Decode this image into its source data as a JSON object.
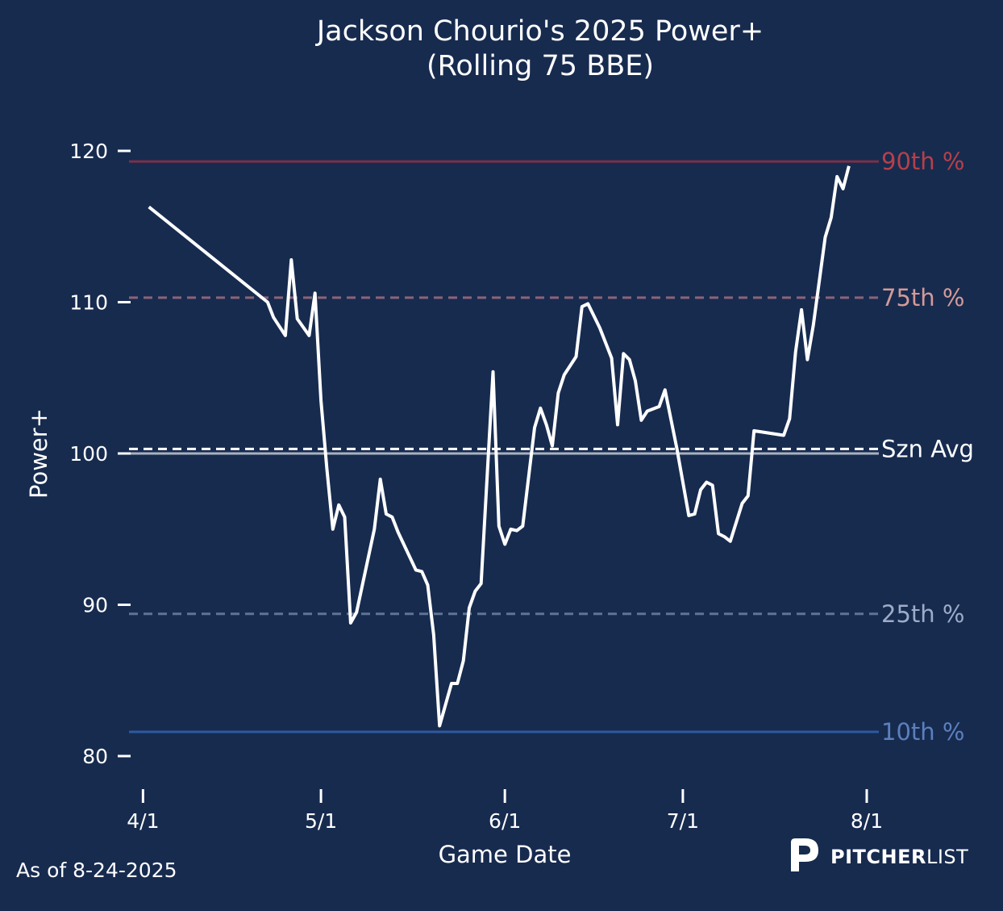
{
  "chart_data": {
    "type": "line",
    "title": "Jackson Chourio's 2025 Power+",
    "subtitle": "(Rolling 75 BBE)",
    "xlabel": "Game Date",
    "ylabel": "Power+",
    "x_ticks": [
      "4/1",
      "5/1",
      "6/1",
      "7/1",
      "8/1"
    ],
    "y_ticks": [
      80,
      90,
      100,
      110,
      120
    ],
    "xlim": [
      "2025-03-31",
      "2025-08-01"
    ],
    "ylim": [
      78,
      122
    ],
    "grid": false,
    "reference_lines": [
      {
        "label": "90th %",
        "value": 119.3,
        "style": "solid",
        "color": "#7a3148",
        "label_color": "#b5404a"
      },
      {
        "label": "75th %",
        "value": 110.3,
        "style": "dashed",
        "color": "#8a6478",
        "label_color": "#d49a98"
      },
      {
        "label": "Szn Avg",
        "value": 100.3,
        "style": "dashed",
        "color": "#ffffff",
        "label_color": "#ffffff"
      },
      {
        "label": "",
        "value": 100,
        "style": "solid",
        "color": "#a9b1bf",
        "label_color": ""
      },
      {
        "label": "25th %",
        "value": 89.4,
        "style": "dashed",
        "color": "#5f7496",
        "label_color": "#9cacc9"
      },
      {
        "label": "10th %",
        "value": 81.6,
        "style": "solid",
        "color": "#2e5aa0",
        "label_color": "#5b80bd"
      }
    ],
    "series": [
      {
        "line_color": "#ffffff",
        "points": [
          [
            "2025-04-02",
            116.3
          ],
          [
            "2025-04-22",
            110.0
          ],
          [
            "2025-04-23",
            109.0
          ],
          [
            "2025-04-25",
            107.8
          ],
          [
            "2025-04-26",
            112.8
          ],
          [
            "2025-04-27",
            108.9
          ],
          [
            "2025-04-29",
            107.8
          ],
          [
            "2025-04-30",
            110.6
          ],
          [
            "2025-05-01",
            103.5
          ],
          [
            "2025-05-02",
            99.0
          ],
          [
            "2025-05-03",
            95.0
          ],
          [
            "2025-05-04",
            96.6
          ],
          [
            "2025-05-05",
            95.8
          ],
          [
            "2025-05-06",
            88.8
          ],
          [
            "2025-05-07",
            89.5
          ],
          [
            "2025-05-10",
            95.0
          ],
          [
            "2025-05-11",
            98.3
          ],
          [
            "2025-05-12",
            96.0
          ],
          [
            "2025-05-13",
            95.8
          ],
          [
            "2025-05-14",
            94.8
          ],
          [
            "2025-05-17",
            92.3
          ],
          [
            "2025-05-18",
            92.2
          ],
          [
            "2025-05-19",
            91.3
          ],
          [
            "2025-05-20",
            88.0
          ],
          [
            "2025-05-21",
            82.0
          ],
          [
            "2025-05-23",
            84.8
          ],
          [
            "2025-05-24",
            84.8
          ],
          [
            "2025-05-25",
            86.3
          ],
          [
            "2025-05-26",
            89.8
          ],
          [
            "2025-05-27",
            90.9
          ],
          [
            "2025-05-28",
            91.4
          ],
          [
            "2025-05-30",
            105.4
          ],
          [
            "2025-05-31",
            95.2
          ],
          [
            "2025-06-01",
            94.0
          ],
          [
            "2025-06-02",
            95.0
          ],
          [
            "2025-06-03",
            94.9
          ],
          [
            "2025-06-04",
            95.2
          ],
          [
            "2025-06-06",
            101.7
          ],
          [
            "2025-06-07",
            103.0
          ],
          [
            "2025-06-08",
            101.9
          ],
          [
            "2025-06-09",
            100.5
          ],
          [
            "2025-06-10",
            104.0
          ],
          [
            "2025-06-11",
            105.2
          ],
          [
            "2025-06-13",
            106.4
          ],
          [
            "2025-06-14",
            109.7
          ],
          [
            "2025-06-15",
            109.9
          ],
          [
            "2025-06-17",
            108.3
          ],
          [
            "2025-06-19",
            106.3
          ],
          [
            "2025-06-20",
            101.9
          ],
          [
            "2025-06-21",
            106.6
          ],
          [
            "2025-06-22",
            106.2
          ],
          [
            "2025-06-23",
            104.8
          ],
          [
            "2025-06-24",
            102.2
          ],
          [
            "2025-06-25",
            102.8
          ],
          [
            "2025-06-27",
            103.1
          ],
          [
            "2025-06-28",
            104.2
          ],
          [
            "2025-06-30",
            100.3
          ],
          [
            "2025-07-02",
            95.9
          ],
          [
            "2025-07-03",
            96.0
          ],
          [
            "2025-07-04",
            97.6
          ],
          [
            "2025-07-05",
            98.1
          ],
          [
            "2025-07-06",
            97.9
          ],
          [
            "2025-07-07",
            94.7
          ],
          [
            "2025-07-08",
            94.5
          ],
          [
            "2025-07-09",
            94.2
          ],
          [
            "2025-07-11",
            96.7
          ],
          [
            "2025-07-12",
            97.2
          ],
          [
            "2025-07-13",
            101.5
          ],
          [
            "2025-07-18",
            101.2
          ],
          [
            "2025-07-19",
            102.3
          ],
          [
            "2025-07-20",
            106.7
          ],
          [
            "2025-07-21",
            109.5
          ],
          [
            "2025-07-22",
            106.2
          ],
          [
            "2025-07-23",
            108.5
          ],
          [
            "2025-07-25",
            114.3
          ],
          [
            "2025-07-26",
            115.6
          ],
          [
            "2025-07-27",
            118.3
          ],
          [
            "2025-07-28",
            117.5
          ],
          [
            "2025-07-29",
            119.0
          ]
        ]
      }
    ]
  },
  "footer": {
    "as_of": "As of 8-24-2025",
    "brand_bold": "PITCHER",
    "brand_light": "LIST"
  },
  "colors": {
    "background": "#172b4f",
    "text": "#ffffff"
  }
}
